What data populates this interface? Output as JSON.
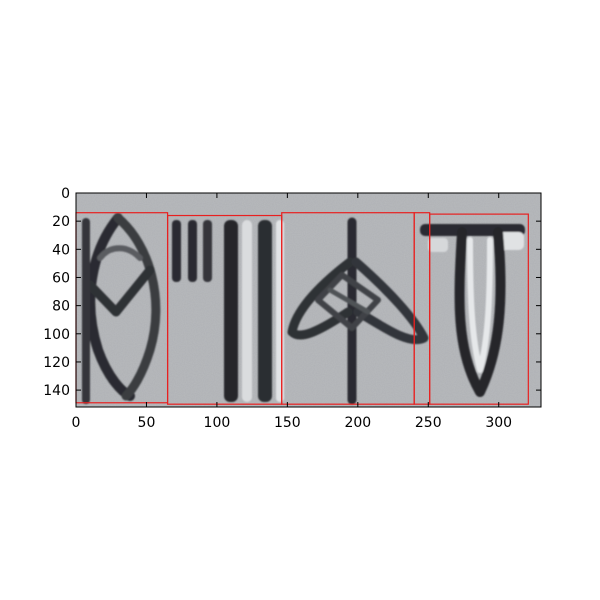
{
  "figure": {
    "kind": "matplotlib imshow of a carved seal inscription with detection boxes",
    "image_width": 330,
    "image_height": 152,
    "xlim": [
      0,
      330
    ],
    "ylim": [
      152,
      0
    ],
    "x_ticks": [
      {
        "value": 0,
        "label": "0"
      },
      {
        "value": 50,
        "label": "50"
      },
      {
        "value": 100,
        "label": "100"
      },
      {
        "value": 150,
        "label": "150"
      },
      {
        "value": 200,
        "label": "200"
      },
      {
        "value": 250,
        "label": "250"
      },
      {
        "value": 300,
        "label": "300"
      }
    ],
    "y_ticks": [
      {
        "value": 0,
        "label": "0"
      },
      {
        "value": 20,
        "label": "20"
      },
      {
        "value": 40,
        "label": "40"
      },
      {
        "value": 60,
        "label": "60"
      },
      {
        "value": 80,
        "label": "80"
      },
      {
        "value": 100,
        "label": "100"
      },
      {
        "value": 120,
        "label": "120"
      },
      {
        "value": 140,
        "label": "140"
      }
    ],
    "box_color": "#e82020",
    "boxes": [
      {
        "x0": 0,
        "y0": 14,
        "x1": 65,
        "y1": 149
      },
      {
        "x0": 65,
        "y0": 16,
        "x1": 146,
        "y1": 150
      },
      {
        "x0": 146,
        "y0": 14,
        "x1": 240,
        "y1": 150
      },
      {
        "x0": 240,
        "y0": 14,
        "x1": 251,
        "y1": 150
      },
      {
        "x0": 251,
        "y0": 15,
        "x1": 321,
        "y1": 150
      }
    ],
    "glyphs": [
      {
        "symbol": "fish-leaf",
        "x_center": 30
      },
      {
        "symbol": "triple-stroke",
        "x_center": 105
      },
      {
        "symbol": "arrow-sprout",
        "x_center": 196
      },
      {
        "symbol": "bar-cup",
        "x_center": 285
      }
    ]
  }
}
